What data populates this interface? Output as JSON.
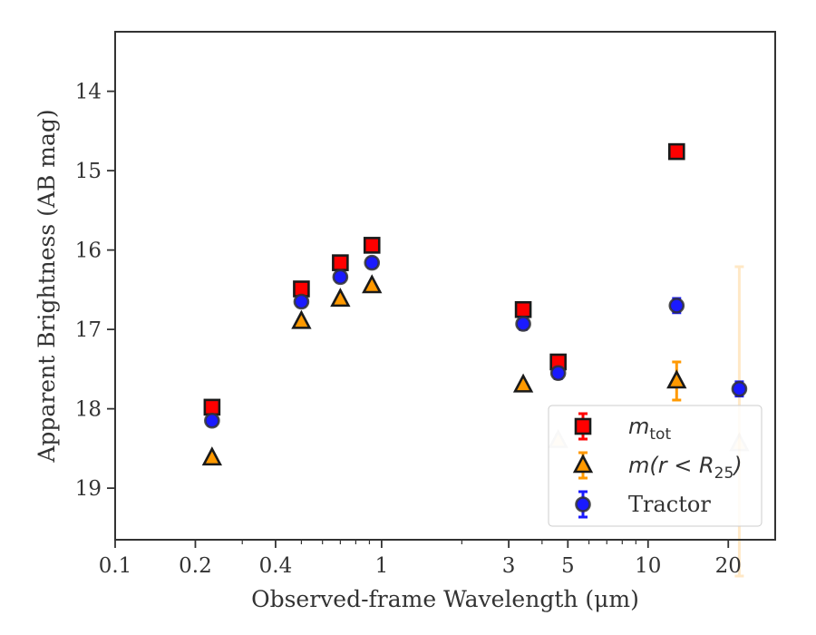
{
  "chart_data": {
    "type": "scatter",
    "xlabel": "Observed-frame Wavelength (μm)",
    "ylabel": "Apparent Brightness (AB mag)",
    "x_scale": "log",
    "xlim": [
      0.1,
      30
    ],
    "ylim": [
      19.65,
      13.25
    ],
    "y_inverted": true,
    "x_ticks": [
      0.1,
      0.2,
      0.4,
      1,
      3,
      5,
      10,
      20
    ],
    "x_tick_labels": [
      "0.1",
      "0.2",
      "0.4",
      "1",
      "3",
      "5",
      "10",
      "20"
    ],
    "y_ticks": [
      14,
      15,
      16,
      17,
      18,
      19
    ],
    "y_tick_labels": [
      "14",
      "15",
      "16",
      "17",
      "18",
      "19"
    ],
    "grid": false,
    "legend_position": "lower-right",
    "series": [
      {
        "name": "m_tot",
        "legend_label": {
          "main": "m",
          "sub": "tot"
        },
        "marker": "square",
        "color": "#ff0000",
        "edge_color": "#1a1a1a",
        "points": [
          {
            "x": 0.231,
            "y": 17.98,
            "err": 0.03
          },
          {
            "x": 0.5,
            "y": 16.49,
            "err": 0.03
          },
          {
            "x": 0.7,
            "y": 16.16,
            "err": 0.03
          },
          {
            "x": 0.92,
            "y": 15.94,
            "err": 0.04
          },
          {
            "x": 3.4,
            "y": 16.75,
            "err": 0.03
          },
          {
            "x": 4.6,
            "y": 17.41,
            "err": 0.04
          },
          {
            "x": 12.8,
            "y": 14.76,
            "err": 0.04
          }
        ]
      },
      {
        "name": "m(r < R25)",
        "legend_label": {
          "pre": "m(r < R",
          "sub": "25",
          "post": ")"
        },
        "marker": "triangle",
        "color": "#ff9900",
        "edge_color": "#1a1a1a",
        "points": [
          {
            "x": 0.231,
            "y": 18.62,
            "err": 0.0
          },
          {
            "x": 0.5,
            "y": 16.9,
            "err": 0.0
          },
          {
            "x": 0.7,
            "y": 16.62,
            "err": 0.0
          },
          {
            "x": 0.92,
            "y": 16.45,
            "err": 0.0
          },
          {
            "x": 3.4,
            "y": 17.7,
            "err": 0.0
          },
          {
            "x": 4.6,
            "y": 18.4,
            "err": 0.0,
            "faded": true
          },
          {
            "x": 12.8,
            "y": 17.65,
            "err": 0.24
          },
          {
            "x": 22.0,
            "y": 18.44,
            "err": 2.23,
            "faded": true
          }
        ]
      },
      {
        "name": "Tractor",
        "marker": "circle",
        "color": "#1a1aff",
        "edge_color": "#333333",
        "points": [
          {
            "x": 0.231,
            "y": 18.15,
            "err": 0.06
          },
          {
            "x": 0.5,
            "y": 16.65,
            "err": 0.06
          },
          {
            "x": 0.7,
            "y": 16.34,
            "err": 0.06
          },
          {
            "x": 0.92,
            "y": 16.16,
            "err": 0.06
          },
          {
            "x": 3.4,
            "y": 16.93,
            "err": 0.07
          },
          {
            "x": 4.6,
            "y": 17.55,
            "err": 0.07
          },
          {
            "x": 12.8,
            "y": 16.7,
            "err": 0.09
          },
          {
            "x": 22.0,
            "y": 17.75,
            "err": 0.09
          }
        ]
      }
    ]
  }
}
